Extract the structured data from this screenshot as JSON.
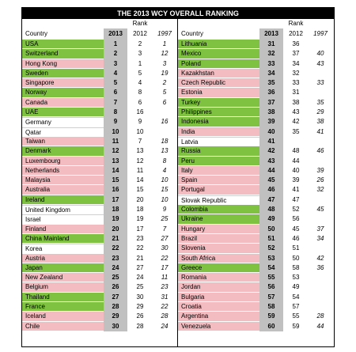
{
  "title": "THE 2013 WCY OVERALL RANKING",
  "rank_label": "Rank",
  "headers": {
    "country": "Country",
    "y2013": "2013",
    "y2012": "2012",
    "y1997": "1997"
  },
  "colors": {
    "green": "#7fc241",
    "pink": "#f2bcc0",
    "white": "#ffffff",
    "rank_col": "#c0c0c0"
  },
  "left": [
    {
      "country": "USA",
      "r2013": "1",
      "r2012": "2",
      "r1997": "1",
      "color": "green"
    },
    {
      "country": "Switzerland",
      "r2013": "2",
      "r2012": "3",
      "r1997": "12",
      "color": "green"
    },
    {
      "country": "Hong Kong",
      "r2013": "3",
      "r2012": "1",
      "r1997": "3",
      "color": "pink"
    },
    {
      "country": "Sweden",
      "r2013": "4",
      "r2012": "5",
      "r1997": "19",
      "color": "green"
    },
    {
      "country": "Singapore",
      "r2013": "5",
      "r2012": "4",
      "r1997": "2",
      "color": "pink"
    },
    {
      "country": "Norway",
      "r2013": "6",
      "r2012": "8",
      "r1997": "5",
      "color": "green"
    },
    {
      "country": "Canada",
      "r2013": "7",
      "r2012": "6",
      "r1997": "6",
      "color": "pink"
    },
    {
      "country": "UAE",
      "r2013": "8",
      "r2012": "16",
      "r1997": "",
      "color": "green"
    },
    {
      "country": "Germany",
      "r2013": "9",
      "r2012": "9",
      "r1997": "16",
      "color": "white"
    },
    {
      "country": "Qatar",
      "r2013": "10",
      "r2012": "10",
      "r1997": "",
      "color": "white"
    },
    {
      "country": "Taiwan",
      "r2013": "11",
      "r2012": "7",
      "r1997": "18",
      "color": "pink"
    },
    {
      "country": "Denmark",
      "r2013": "12",
      "r2012": "13",
      "r1997": "13",
      "color": "green"
    },
    {
      "country": "Luxembourg",
      "r2013": "13",
      "r2012": "12",
      "r1997": "8",
      "color": "pink"
    },
    {
      "country": "Netherlands",
      "r2013": "14",
      "r2012": "11",
      "r1997": "4",
      "color": "pink"
    },
    {
      "country": "Malaysia",
      "r2013": "15",
      "r2012": "14",
      "r1997": "10",
      "color": "pink"
    },
    {
      "country": "Australia",
      "r2013": "16",
      "r2012": "15",
      "r1997": "15",
      "color": "pink"
    },
    {
      "country": "Ireland",
      "r2013": "17",
      "r2012": "20",
      "r1997": "10",
      "color": "green"
    },
    {
      "country": "United Kingdom",
      "r2013": "18",
      "r2012": "18",
      "r1997": "9",
      "color": "white"
    },
    {
      "country": "Israel",
      "r2013": "19",
      "r2012": "19",
      "r1997": "25",
      "color": "white"
    },
    {
      "country": "Finland",
      "r2013": "20",
      "r2012": "17",
      "r1997": "7",
      "color": "pink"
    },
    {
      "country": "China Mainland",
      "r2013": "21",
      "r2012": "23",
      "r1997": "27",
      "color": "green"
    },
    {
      "country": "Korea",
      "r2013": "22",
      "r2012": "22",
      "r1997": "30",
      "color": "white"
    },
    {
      "country": "Austria",
      "r2013": "23",
      "r2012": "21",
      "r1997": "22",
      "color": "pink"
    },
    {
      "country": "Japan",
      "r2013": "24",
      "r2012": "27",
      "r1997": "17",
      "color": "green"
    },
    {
      "country": "New Zealand",
      "r2013": "25",
      "r2012": "24",
      "r1997": "11",
      "color": "pink"
    },
    {
      "country": "Belgium",
      "r2013": "26",
      "r2012": "25",
      "r1997": "23",
      "color": "pink"
    },
    {
      "country": "Thailand",
      "r2013": "27",
      "r2012": "30",
      "r1997": "31",
      "color": "green"
    },
    {
      "country": "France",
      "r2013": "28",
      "r2012": "29",
      "r1997": "22",
      "color": "green"
    },
    {
      "country": "Iceland",
      "r2013": "29",
      "r2012": "26",
      "r1997": "28",
      "color": "pink"
    },
    {
      "country": "Chile",
      "r2013": "30",
      "r2012": "28",
      "r1997": "24",
      "color": "pink"
    }
  ],
  "right": [
    {
      "country": "Lithuania",
      "r2013": "31",
      "r2012": "36",
      "r1997": "",
      "color": "green"
    },
    {
      "country": "Mexico",
      "r2013": "32",
      "r2012": "37",
      "r1997": "40",
      "color": "green"
    },
    {
      "country": "Poland",
      "r2013": "33",
      "r2012": "34",
      "r1997": "43",
      "color": "green"
    },
    {
      "country": "Kazakhstan",
      "r2013": "34",
      "r2012": "32",
      "r1997": "",
      "color": "pink"
    },
    {
      "country": "Czech Republic",
      "r2013": "35",
      "r2012": "33",
      "r1997": "33",
      "color": "pink"
    },
    {
      "country": "Estonia",
      "r2013": "36",
      "r2012": "31",
      "r1997": "",
      "color": "pink"
    },
    {
      "country": "Turkey",
      "r2013": "37",
      "r2012": "38",
      "r1997": "35",
      "color": "green"
    },
    {
      "country": "Philippines",
      "r2013": "38",
      "r2012": "43",
      "r1997": "29",
      "color": "green"
    },
    {
      "country": "Indonesia",
      "r2013": "39",
      "r2012": "42",
      "r1997": "38",
      "color": "green"
    },
    {
      "country": "India",
      "r2013": "40",
      "r2012": "35",
      "r1997": "41",
      "color": "pink"
    },
    {
      "country": "Latvia",
      "r2013": "41",
      "r2012": "",
      "r1997": "",
      "color": "white"
    },
    {
      "country": "Russia",
      "r2013": "42",
      "r2012": "48",
      "r1997": "46",
      "color": "green"
    },
    {
      "country": "Peru",
      "r2013": "43",
      "r2012": "44",
      "r1997": "",
      "color": "green"
    },
    {
      "country": "Italy",
      "r2013": "44",
      "r2012": "40",
      "r1997": "39",
      "color": "pink"
    },
    {
      "country": "Spain",
      "r2013": "45",
      "r2012": "39",
      "r1997": "26",
      "color": "pink"
    },
    {
      "country": "Portugal",
      "r2013": "46",
      "r2012": "41",
      "r1997": "32",
      "color": "pink"
    },
    {
      "country": "Slovak Republic",
      "r2013": "47",
      "r2012": "47",
      "r1997": "",
      "color": "white"
    },
    {
      "country": "Colombia",
      "r2013": "48",
      "r2012": "52",
      "r1997": "45",
      "color": "green"
    },
    {
      "country": "Ukraine",
      "r2013": "49",
      "r2012": "56",
      "r1997": "",
      "color": "green"
    },
    {
      "country": "Hungary",
      "r2013": "50",
      "r2012": "45",
      "r1997": "37",
      "color": "pink"
    },
    {
      "country": "Brazil",
      "r2013": "51",
      "r2012": "46",
      "r1997": "34",
      "color": "pink"
    },
    {
      "country": "Slovenia",
      "r2013": "52",
      "r2012": "51",
      "r1997": "",
      "color": "pink"
    },
    {
      "country": "South Africa",
      "r2013": "53",
      "r2012": "50",
      "r1997": "42",
      "color": "pink"
    },
    {
      "country": "Greece",
      "r2013": "54",
      "r2012": "58",
      "r1997": "36",
      "color": "green"
    },
    {
      "country": "Romania",
      "r2013": "55",
      "r2012": "53",
      "r1997": "",
      "color": "pink"
    },
    {
      "country": "Jordan",
      "r2013": "56",
      "r2012": "49",
      "r1997": "",
      "color": "pink"
    },
    {
      "country": "Bulgaria",
      "r2013": "57",
      "r2012": "54",
      "r1997": "",
      "color": "pink"
    },
    {
      "country": "Croatia",
      "r2013": "58",
      "r2012": "57",
      "r1997": "",
      "color": "pink"
    },
    {
      "country": "Argentina",
      "r2013": "59",
      "r2012": "55",
      "r1997": "28",
      "color": "pink"
    },
    {
      "country": "Venezuela",
      "r2013": "60",
      "r2012": "59",
      "r1997": "44",
      "color": "pink"
    }
  ]
}
